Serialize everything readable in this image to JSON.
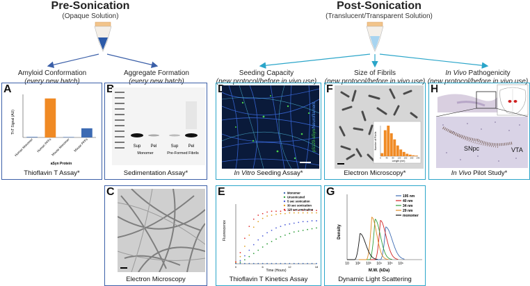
{
  "pre": {
    "title": "Pre-Sonication",
    "subtitle": "(Opaque Solution)"
  },
  "post": {
    "title": "Post-Sonication",
    "subtitle": "(Translucent/Transparent Solution)"
  },
  "categories": [
    {
      "title": "Amyloid Conformation",
      "note": "(every new batch)"
    },
    {
      "title": "Aggregate Formation",
      "note": "(every new batch)"
    },
    {
      "title": "Seeding Capacity",
      "note": "(new protocol/before in vivo use)"
    },
    {
      "title": "Size of Fibrils",
      "note": "(new protocol/before in vivo use)"
    },
    {
      "title_pre": "In Vivo",
      "title_post": " Pathogenicity",
      "note": "(new protocol/before in vivo use)"
    }
  ],
  "panels": {
    "A": {
      "letter": "A",
      "caption": "Thioflavin T Assay*",
      "ylabel": "ThT Signal (AU)",
      "xlabel": "aSyn Protein"
    },
    "B": {
      "letter": "B",
      "caption": "Sedimentation Assay*",
      "lanes": [
        "Sup",
        "Pel",
        "Sup",
        "Pel"
      ],
      "groups": [
        "Monomer",
        "Pre-Formed Fibrils"
      ]
    },
    "C": {
      "letter": "C",
      "caption": "Electron Microscopy"
    },
    "D": {
      "letter": "D",
      "caption_pre": "In Vitro",
      "caption_post": " Seeding Assay*",
      "stain1": "pS129-aSyn",
      "stain2": "/Neurofilament"
    },
    "E": {
      "letter": "E",
      "caption": "Thioflavin T Kinetics Assay",
      "ylabel": "Fluorescence",
      "xlabel": "Time (Hours)"
    },
    "F": {
      "letter": "F",
      "caption": "Electron Microscopy*",
      "inset_ylabel": "Number of Fibrils",
      "inset_xlabel": "Length (nm)"
    },
    "G": {
      "letter": "G",
      "caption": "Dynamic Light Scattering",
      "ylabel": "Density",
      "xlabel": "M.W. (kDa)"
    },
    "H": {
      "letter": "H",
      "caption_pre": "In Vivo",
      "caption_post": " Pilot Study*",
      "label1": "SNpc",
      "label2": "VTA"
    }
  },
  "chart_data": [
    {
      "type": "bar",
      "categories": [
        "Human Monomer",
        "Human PFFs",
        "Mouse Monomer",
        "Mouse PFFs"
      ],
      "values": [
        20,
        1450,
        15,
        340
      ],
      "colors": [
        "#3d6bb3",
        "#f08a24",
        "#3d6bb3",
        "#3d6bb3"
      ],
      "ylabel": "ThT Signal (AU)",
      "xlabel": "aSyn Protein",
      "ylim": [
        0,
        1600
      ],
      "yticks": []
    },
    {
      "type": "scatter",
      "xlabel": "Time (Hours)",
      "ylabel": "Fluorescence",
      "xlim": [
        0,
        18
      ],
      "ylim": [
        0,
        75000
      ],
      "xticks": [
        0,
        6,
        12,
        18
      ],
      "legend": "top-right",
      "series": [
        {
          "name": "Monomer",
          "color": "#3d6bb3",
          "x": [
            0,
            1,
            2,
            3,
            4,
            5,
            6,
            7,
            8,
            9,
            10,
            11,
            12,
            13,
            14,
            15,
            16,
            17,
            18
          ],
          "y": [
            300,
            300,
            300,
            300,
            300,
            300,
            300,
            300,
            300,
            300,
            300,
            300,
            300,
            300,
            300,
            300,
            300,
            300,
            300
          ]
        },
        {
          "name": "Unsonicated",
          "color": "#2e9e3a",
          "x": [
            0,
            1,
            2,
            3,
            4,
            5,
            6,
            7,
            8,
            9,
            10,
            11,
            12,
            13,
            14,
            15,
            16,
            17,
            18
          ],
          "y": [
            500,
            2000,
            5000,
            9000,
            13000,
            17000,
            21000,
            25000,
            28000,
            31000,
            34000,
            36000,
            38000,
            40000,
            41000,
            42000,
            43000,
            44000,
            45000
          ]
        },
        {
          "name": "5 sec sonication",
          "color": "#4a5bd8",
          "x": [
            0,
            1,
            2,
            3,
            4,
            5,
            6,
            7,
            8,
            9,
            10,
            11,
            12,
            13,
            14,
            15,
            16,
            17,
            18
          ],
          "y": [
            800,
            4000,
            10000,
            17000,
            24000,
            30000,
            35000,
            39000,
            42000,
            45000,
            47000,
            49000,
            50000,
            51000,
            52000,
            53000,
            53000,
            54000,
            54000
          ]
        },
        {
          "name": "30 sec sonication",
          "color": "#e0a020",
          "x": [
            0,
            1,
            2,
            3,
            4,
            5,
            6,
            7,
            8,
            9,
            10,
            11,
            12,
            13,
            14,
            15,
            16,
            17,
            18
          ],
          "y": [
            1500,
            9000,
            22000,
            36000,
            46000,
            53000,
            57000,
            60000,
            61000,
            62000,
            63000,
            63000,
            64000,
            64000,
            64000,
            64000,
            64000,
            64000,
            64000
          ]
        },
        {
          "name": "120 sec sonication",
          "color": "#e03030",
          "x": [
            0,
            1,
            2,
            3,
            4,
            5,
            6,
            7,
            8,
            9,
            10,
            11,
            12,
            13,
            14,
            15,
            16,
            17,
            18
          ],
          "y": [
            2500,
            14000,
            32000,
            47000,
            56000,
            61000,
            63000,
            65000,
            66000,
            66000,
            66000,
            67000,
            67000,
            67000,
            67000,
            67000,
            67000,
            67000,
            67000
          ]
        }
      ]
    },
    {
      "type": "line",
      "xlabel": "M.W. (kDa)",
      "ylabel": "Density",
      "xscale": "log",
      "xlim": [
        1,
        8
      ],
      "ylim": [
        0,
        100
      ],
      "xtick_labels": [
        "10",
        "10²",
        "10³",
        "10⁴",
        "10⁵",
        "10⁶"
      ],
      "yticks": [],
      "legend": "top-right",
      "series": [
        {
          "name": "195 nm",
          "color": "#3d6bb3",
          "peak": 4.6,
          "height": 50,
          "width": 0.55
        },
        {
          "name": "40 nm",
          "color": "#d02020",
          "peak": 4.1,
          "height": 60,
          "width": 0.45
        },
        {
          "name": "34 nm",
          "color": "#2e9e3a",
          "peak": 3.6,
          "height": 62,
          "width": 0.4
        },
        {
          "name": "29 nm",
          "color": "#e08a20",
          "peak": 3.3,
          "height": 65,
          "width": 0.35
        },
        {
          "name": "monomer",
          "color": "#111111",
          "peak": 2.2,
          "height": 40,
          "width": 0.45
        }
      ]
    },
    {
      "type": "bar",
      "title": "",
      "xlabel": "Length (nm)",
      "ylabel": "Number of Fibrils",
      "categories": [
        "20",
        "40",
        "60",
        "80",
        "100",
        "120",
        "140",
        "160",
        "180",
        "200",
        "220",
        "240"
      ],
      "values": [
        10,
        85,
        100,
        75,
        55,
        35,
        22,
        14,
        8,
        5,
        3,
        2
      ],
      "xtick_labels": [
        "0",
        "40",
        "80",
        "120",
        "160",
        "200",
        "240"
      ],
      "color": "#f08a24"
    }
  ]
}
